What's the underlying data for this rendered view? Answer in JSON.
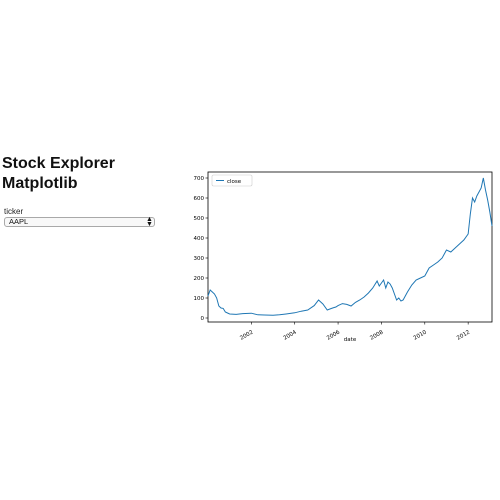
{
  "header": {
    "title_line1": "Stock Explorer",
    "title_line2": "Matplotlib"
  },
  "controls": {
    "ticker_label": "ticker",
    "ticker_value": "AAPL"
  },
  "chart_data": {
    "type": "line",
    "title": "",
    "xlabel": "date",
    "ylabel": "",
    "ylim": [
      -20,
      730
    ],
    "xlim": [
      2000.0,
      2013.1
    ],
    "x_tick_labels": [
      "2002",
      "2004",
      "2006",
      "2008",
      "2010",
      "2012"
    ],
    "x_tick_values": [
      2002,
      2004,
      2006,
      2008,
      2010,
      2012
    ],
    "y_ticks": [
      0,
      100,
      200,
      300,
      400,
      500,
      600,
      700
    ],
    "legend": {
      "placement": "top-left"
    },
    "grid": false,
    "color": "#1f77b4",
    "series": [
      {
        "name": "close",
        "x": [
          2000.0,
          2000.1,
          2000.2,
          2000.3,
          2000.4,
          2000.5,
          2000.6,
          2000.7,
          2000.8,
          2000.9,
          2001.0,
          2001.3,
          2001.6,
          2002.0,
          2002.3,
          2002.6,
          2003.0,
          2003.3,
          2003.6,
          2004.0,
          2004.3,
          2004.6,
          2004.9,
          2005.1,
          2005.3,
          2005.5,
          2005.7,
          2005.8,
          2005.9,
          2006.0,
          2006.2,
          2006.4,
          2006.6,
          2006.8,
          2007.0,
          2007.2,
          2007.4,
          2007.6,
          2007.8,
          2007.9,
          2008.0,
          2008.1,
          2008.2,
          2008.3,
          2008.4,
          2008.5,
          2008.6,
          2008.7,
          2008.8,
          2008.9,
          2009.0,
          2009.1,
          2009.2,
          2009.4,
          2009.6,
          2009.8,
          2010.0,
          2010.2,
          2010.4,
          2010.6,
          2010.8,
          2011.0,
          2011.2,
          2011.4,
          2011.6,
          2011.8,
          2012.0,
          2012.1,
          2012.2,
          2012.3,
          2012.4,
          2012.5,
          2012.6,
          2012.7,
          2012.8,
          2012.9,
          2013.0,
          2013.1
        ],
        "values": [
          110,
          140,
          130,
          120,
          100,
          60,
          50,
          48,
          30,
          25,
          20,
          18,
          22,
          24,
          16,
          15,
          14,
          16,
          20,
          26,
          34,
          40,
          62,
          90,
          70,
          40,
          48,
          52,
          55,
          62,
          72,
          68,
          60,
          78,
          90,
          105,
          125,
          150,
          185,
          160,
          175,
          190,
          150,
          180,
          170,
          150,
          120,
          90,
          100,
          85,
          90,
          110,
          130,
          165,
          190,
          200,
          210,
          250,
          265,
          280,
          300,
          340,
          330,
          350,
          370,
          390,
          420,
          520,
          600,
          580,
          610,
          630,
          650,
          700,
          640,
          590,
          530,
          460
        ]
      }
    ]
  }
}
